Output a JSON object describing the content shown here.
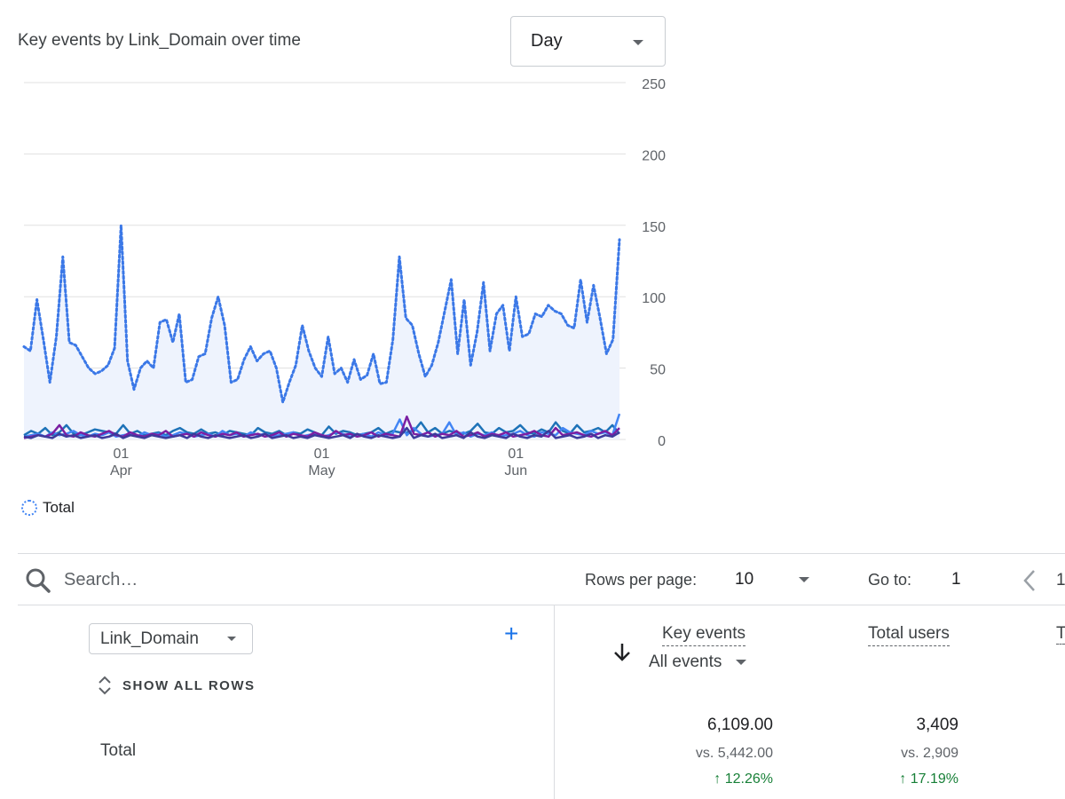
{
  "card": {
    "title": "Key events by Link_Domain over time",
    "granularity": "Day"
  },
  "chart_data": {
    "type": "line",
    "y_ticks": [
      "250",
      "200",
      "150",
      "100",
      "50",
      "0"
    ],
    "ylim": [
      0,
      250
    ],
    "x_tick_labels": [
      {
        "day": "01",
        "month": "Apr"
      },
      {
        "day": "01",
        "month": "May"
      },
      {
        "day": "01",
        "month": "Jun"
      }
    ],
    "x_tick_indices": [
      15,
      46,
      76
    ],
    "grid": true,
    "legend_position": "bottom-left",
    "series": [
      {
        "name": "Total",
        "style": "dotted-area",
        "color": "#3b78e7",
        "values": [
          65,
          62,
          98,
          70,
          40,
          72,
          128,
          68,
          66,
          58,
          50,
          46,
          48,
          52,
          64,
          150,
          55,
          35,
          50,
          55,
          50,
          82,
          84,
          68,
          88,
          40,
          42,
          58,
          60,
          85,
          100,
          80,
          40,
          42,
          56,
          65,
          55,
          60,
          62,
          50,
          26,
          40,
          52,
          80,
          62,
          50,
          44,
          72,
          46,
          50,
          40,
          56,
          42,
          45,
          60,
          39,
          40,
          70,
          128,
          85,
          80,
          60,
          44,
          52,
          68,
          90,
          112,
          60,
          98,
          52,
          75,
          110,
          62,
          88,
          94,
          62,
          100,
          72,
          74,
          88,
          86,
          94,
          90,
          88,
          80,
          78,
          112,
          82,
          108,
          85,
          60,
          70,
          140
        ],
        "approximate": true
      },
      {
        "name": "",
        "style": "line",
        "color": "#1e73b8",
        "values": [
          3,
          6,
          4,
          8,
          3,
          5,
          10,
          4,
          3,
          5,
          7,
          6,
          5,
          4,
          10,
          4,
          6,
          3,
          4,
          5,
          3,
          6,
          8,
          5,
          4,
          7,
          4,
          5,
          3,
          6,
          5,
          4,
          3,
          8,
          5,
          4,
          6,
          3,
          5,
          4,
          7,
          5,
          3,
          9,
          4,
          6,
          5,
          3,
          4,
          5,
          8,
          4,
          6,
          5,
          5,
          6,
          12,
          5,
          8,
          4,
          6,
          5,
          4,
          6,
          11,
          5,
          4,
          8,
          5,
          6,
          10,
          5,
          4,
          7,
          5,
          12,
          6,
          4,
          10,
          5,
          6,
          8,
          5,
          10,
          4
        ]
      },
      {
        "name": "",
        "style": "line",
        "color": "#4285f4",
        "values": [
          2,
          3,
          4,
          2,
          5,
          3,
          4,
          6,
          3,
          2,
          4,
          3,
          5,
          2,
          3,
          4,
          2,
          5,
          3,
          4,
          2,
          3,
          5,
          4,
          2,
          3,
          4,
          2,
          6,
          3,
          4,
          2,
          5,
          3,
          4,
          2,
          3,
          4,
          5,
          2,
          3,
          4,
          2,
          3,
          5,
          4,
          2,
          3,
          4,
          2,
          5,
          3,
          4,
          14,
          3,
          8,
          4,
          2,
          3,
          4,
          12,
          3,
          5,
          2,
          4,
          3,
          5,
          2,
          3,
          4,
          6,
          3,
          2,
          5,
          4,
          3,
          8,
          5,
          4,
          3,
          6,
          4,
          5,
          3,
          18
        ]
      },
      {
        "name": "",
        "style": "line",
        "color": "#7b1fa2",
        "values": [
          1,
          2,
          3,
          2,
          4,
          10,
          3,
          2,
          5,
          3,
          2,
          4,
          6,
          3,
          2,
          5,
          3,
          2,
          4,
          3,
          6,
          2,
          3,
          4,
          2,
          5,
          3,
          2,
          4,
          3,
          5,
          2,
          3,
          4,
          2,
          3,
          5,
          2,
          4,
          3,
          2,
          5,
          3,
          2,
          6,
          3,
          4,
          2,
          3,
          5,
          2,
          4,
          3,
          2,
          16,
          4,
          3,
          5,
          2,
          4,
          3,
          6,
          2,
          3,
          5,
          2,
          4,
          3,
          5,
          2,
          3,
          4,
          6,
          3,
          2,
          8,
          3,
          4,
          5,
          3,
          2,
          4,
          6,
          3,
          8
        ]
      },
      {
        "name": "",
        "style": "line",
        "color": "#3c3a9b",
        "values": [
          2,
          1,
          3,
          2,
          1,
          4,
          2,
          3,
          1,
          2,
          3,
          1,
          2,
          4,
          1,
          3,
          2,
          1,
          3,
          2,
          1,
          2,
          3,
          1,
          4,
          2,
          1,
          3,
          2,
          1,
          2,
          3,
          1,
          2,
          4,
          1,
          2,
          3,
          1,
          2,
          1,
          3,
          2,
          1,
          2,
          3,
          1,
          4,
          2,
          1,
          3,
          2,
          1,
          2,
          8,
          1,
          3,
          2,
          4,
          1,
          2,
          3,
          1,
          5,
          2,
          1,
          3,
          2,
          1,
          4,
          2,
          1,
          3,
          2,
          6,
          1,
          2,
          3,
          1,
          2,
          4,
          1,
          3,
          2,
          5
        ]
      }
    ]
  },
  "table": {
    "search_placeholder": "Search…",
    "rows_per_page_label": "Rows per page:",
    "rows_per_page_value": "10",
    "go_to_label": "Go to:",
    "go_to_value": "1",
    "page_cut": "1",
    "dimension": "Link_Domain",
    "add_dimension": "+",
    "show_all_rows": "SHOW ALL ROWS",
    "total_label": "Total",
    "columns": [
      {
        "header": "Key events",
        "sub_select": "All events",
        "total": "6,109.00",
        "compare": "vs. 5,442.00",
        "change": "12.26%"
      },
      {
        "header": "Total users",
        "total": "3,409",
        "compare": "vs. 2,909",
        "change": "17.19%"
      }
    ],
    "cut_header": "T"
  },
  "colors": {
    "accent": "#1a73e8",
    "positive": "#188038",
    "area_fill": "#eef3fd"
  },
  "icons": {
    "search": "search-icon",
    "prev": "chevron-left-icon",
    "sort": "arrow-down-icon",
    "expand": "unfold-more-icon"
  }
}
